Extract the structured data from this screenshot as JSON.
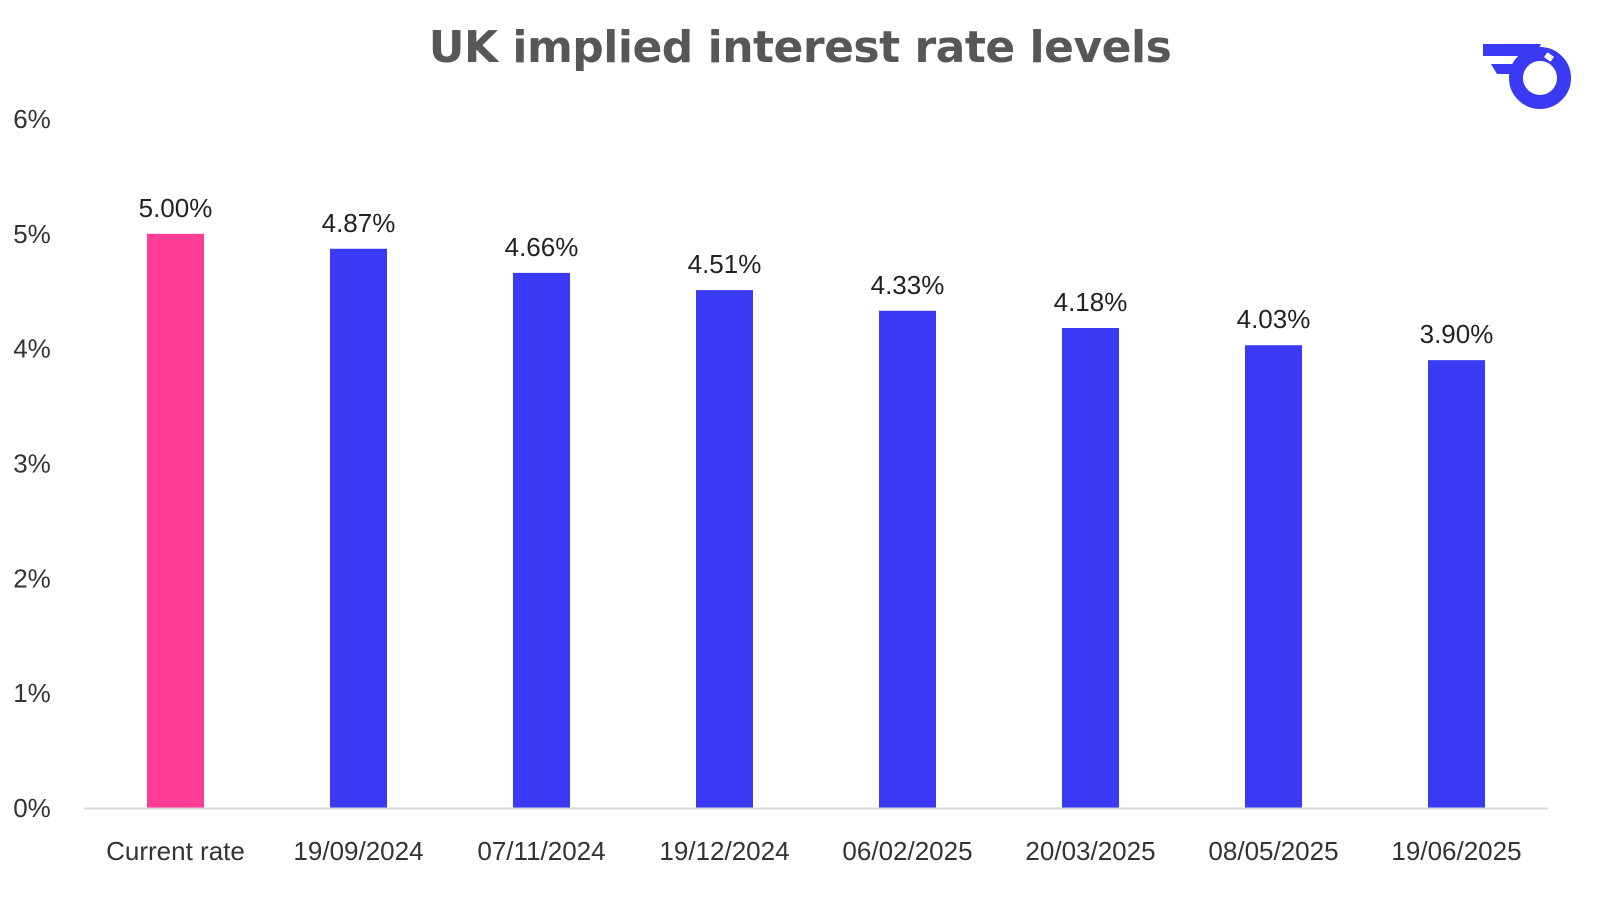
{
  "chart_data": {
    "type": "bar",
    "title": "UK implied interest rate levels",
    "xlabel": "",
    "ylabel": "",
    "categories": [
      "Current rate",
      "19/09/2024",
      "07/11/2024",
      "19/12/2024",
      "06/02/2025",
      "20/03/2025",
      "08/05/2025",
      "19/06/2025"
    ],
    "values": [
      5.0,
      4.87,
      4.66,
      4.51,
      4.33,
      4.18,
      4.03,
      3.9
    ],
    "data_labels": [
      "5.00%",
      "4.87%",
      "4.66%",
      "4.51%",
      "4.33%",
      "4.18%",
      "4.03%",
      "3.90%"
    ],
    "ylim": [
      0,
      6
    ],
    "yticks": [
      0,
      1,
      2,
      3,
      4,
      5,
      6
    ],
    "ytick_labels": [
      "0%",
      "1%",
      "2%",
      "3%",
      "4%",
      "5%",
      "6%"
    ],
    "grid": false,
    "legend": "none",
    "colors": {
      "highlight": "#FF3C96",
      "bars": "#3A3AF4",
      "axis": "#D9D9D9",
      "title": "#575757",
      "logo": "#3A3AF4"
    },
    "highlight_index": 0
  },
  "logo": {
    "icon": "brand-logo-icon"
  }
}
